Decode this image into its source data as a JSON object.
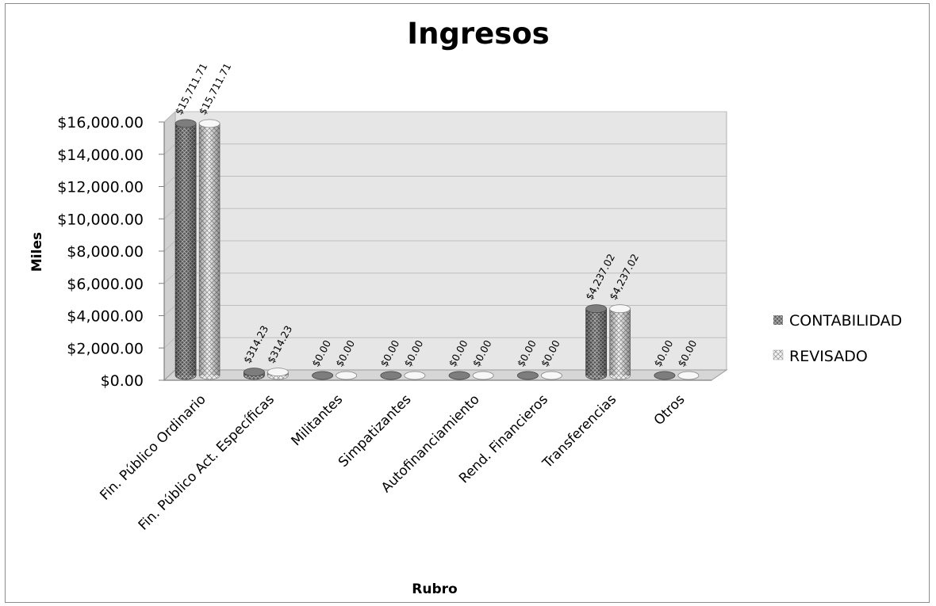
{
  "chart_data": {
    "type": "bar",
    "title": "Ingresos",
    "xlabel": "Rubro",
    "ylabel": "Miles",
    "ylim": [
      0,
      16000
    ],
    "ytick_labels": [
      "$0.00",
      "$2,000.00",
      "$4,000.00",
      "$6,000.00",
      "$8,000.00",
      "$10,000.00",
      "$12,000.00",
      "$14,000.00",
      "$16,000.00"
    ],
    "categories": [
      "Fin. Público Ordinario",
      "Fin. Público Act. Específicas",
      "Militantes",
      "Simpatizantes",
      "Autofinanciamiento",
      "Rend. Financieros",
      "Transferencias",
      "Otros"
    ],
    "series": [
      {
        "name": "CONTABILIDAD",
        "values": [
          15711.71,
          314.23,
          0,
          0,
          0,
          0,
          4237.02,
          0
        ],
        "labels": [
          "$15,711.71",
          "$314.23",
          "$0.00",
          "$0.00",
          "$0.00",
          "$0.00",
          "$4,237.02",
          "$0.00"
        ]
      },
      {
        "name": "REVISADO",
        "values": [
          15711.71,
          314.23,
          0,
          0,
          0,
          0,
          4237.02,
          0
        ],
        "labels": [
          "$15,711.71",
          "$314.23",
          "$0.00",
          "$0.00",
          "$0.00",
          "$0.00",
          "$4,237.02",
          "$0.00"
        ]
      }
    ],
    "grid": true,
    "legend_position": "right",
    "style": "3d-cylinder",
    "colors": {
      "contabilidad": "#6f6f6f",
      "revisado": "#e6e6e6",
      "wall": "#e6e6e6",
      "floor": "#d2d2d2",
      "grid": "#bdbdbd"
    }
  }
}
